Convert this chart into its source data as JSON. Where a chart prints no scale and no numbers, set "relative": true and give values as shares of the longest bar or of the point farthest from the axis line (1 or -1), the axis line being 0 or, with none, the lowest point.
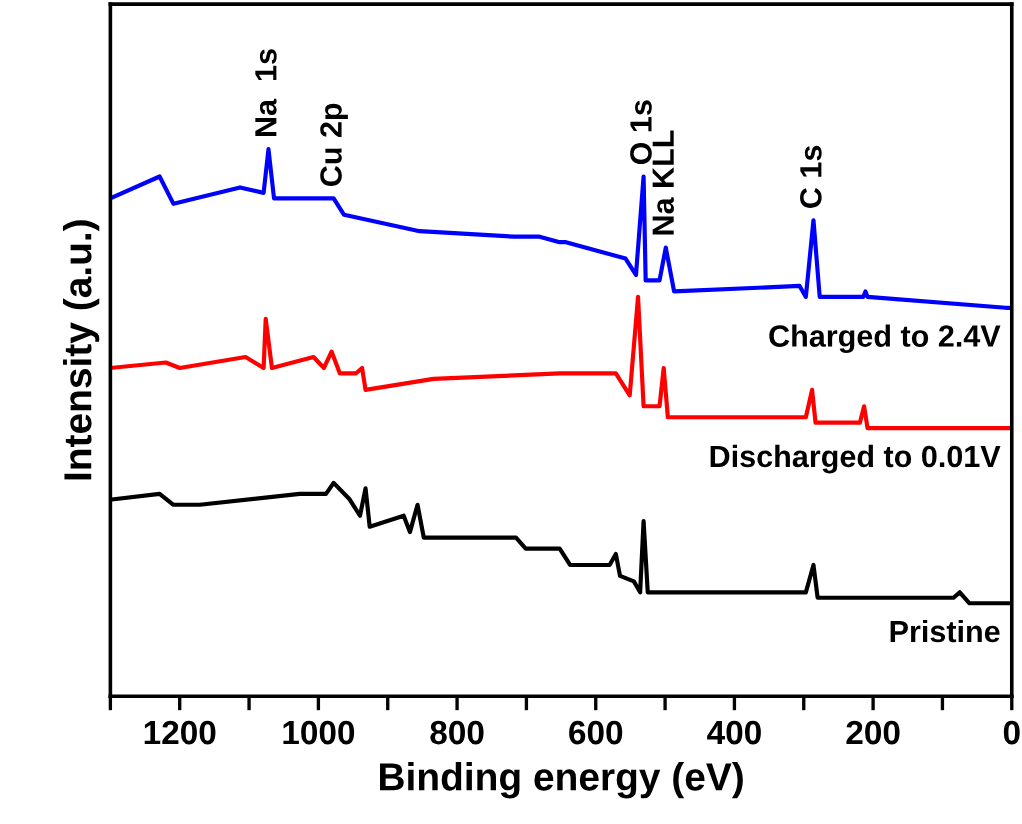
{
  "chart_data": {
    "type": "line",
    "relative": true,
    "xlabel": "Binding energy (eV)",
    "ylabel": "Intensity (a.u.)",
    "xlim": [
      1300,
      0
    ],
    "xticks": [
      {
        "value": 1300,
        "label": null
      },
      1200,
      {
        "value": 1100,
        "label": null
      },
      1000,
      {
        "value": 900,
        "label": null
      },
      800,
      {
        "value": 700,
        "label": null
      },
      600,
      {
        "value": 500,
        "label": null
      },
      400,
      {
        "value": 300,
        "label": null
      },
      200,
      {
        "value": 100,
        "label": null
      },
      0
    ],
    "tick_labels": "x",
    "grid": false,
    "legend": false,
    "marker": "none",
    "line_style": "solid",
    "series": [
      {
        "name": "Charged to 2.4V",
        "color": "#0000ff",
        "x": [
          1300,
          1229,
          1209,
          1113,
          1079,
          1072,
          1064,
          998,
          978,
          963,
          854,
          718,
          681,
          652,
          643,
          557,
          542,
          531,
          528,
          508,
          499,
          487,
          306,
          297,
          286,
          277,
          214,
          211,
          208,
          9,
          0
        ],
        "values": [
          0.91,
          0.95,
          0.9,
          0.93,
          0.92,
          1.0,
          0.91,
          0.91,
          0.91,
          0.88,
          0.85,
          0.84,
          0.84,
          0.83,
          0.83,
          0.8,
          0.77,
          0.95,
          0.76,
          0.76,
          0.82,
          0.74,
          0.75,
          0.73,
          0.87,
          0.73,
          0.73,
          0.74,
          0.73,
          0.71,
          0.71
        ]
      },
      {
        "name": "Discharged to 0.01V",
        "color": "#ff0000",
        "x": [
          1300,
          1220,
          1200,
          1105,
          1079,
          1076,
          1067,
          1007,
          992,
          981,
          969,
          946,
          937,
          932,
          834,
          652,
          586,
          571,
          551,
          539,
          531,
          508,
          502,
          496,
          297,
          288,
          283,
          219,
          213,
          208,
          0
        ],
        "values": [
          0.6,
          0.61,
          0.6,
          0.62,
          0.6,
          0.69,
          0.6,
          0.62,
          0.6,
          0.63,
          0.59,
          0.59,
          0.6,
          0.56,
          0.58,
          0.59,
          0.59,
          0.59,
          0.55,
          0.73,
          0.53,
          0.53,
          0.6,
          0.51,
          0.51,
          0.56,
          0.5,
          0.5,
          0.53,
          0.49,
          0.49
        ]
      },
      {
        "name": "Pristine",
        "color": "#000000",
        "x": [
          1295,
          1229,
          1209,
          1171,
          1027,
          989,
          978,
          955,
          940,
          932,
          926,
          877,
          868,
          857,
          848,
          738,
          715,
          701,
          652,
          637,
          580,
          571,
          565,
          545,
          536,
          531,
          525,
          297,
          286,
          280,
          84,
          75,
          61,
          0
        ],
        "values": [
          0.36,
          0.37,
          0.35,
          0.35,
          0.37,
          0.37,
          0.39,
          0.36,
          0.33,
          0.38,
          0.31,
          0.33,
          0.3,
          0.35,
          0.29,
          0.29,
          0.29,
          0.27,
          0.27,
          0.24,
          0.24,
          0.26,
          0.22,
          0.21,
          0.19,
          0.32,
          0.19,
          0.19,
          0.24,
          0.18,
          0.18,
          0.19,
          0.17,
          0.17
        ]
      }
    ],
    "annotations": [
      {
        "text": "Na  1s",
        "x": 1072,
        "y": 1.0
      },
      {
        "text": "Cu 2p",
        "x": 978,
        "y": 0.91
      },
      {
        "text": "O 1s",
        "x": 531,
        "y": 0.95
      },
      {
        "text": "Na KLL",
        "x": 499,
        "y": 0.82
      },
      {
        "text": "C 1s",
        "x": 286,
        "y": 0.87
      }
    ]
  }
}
